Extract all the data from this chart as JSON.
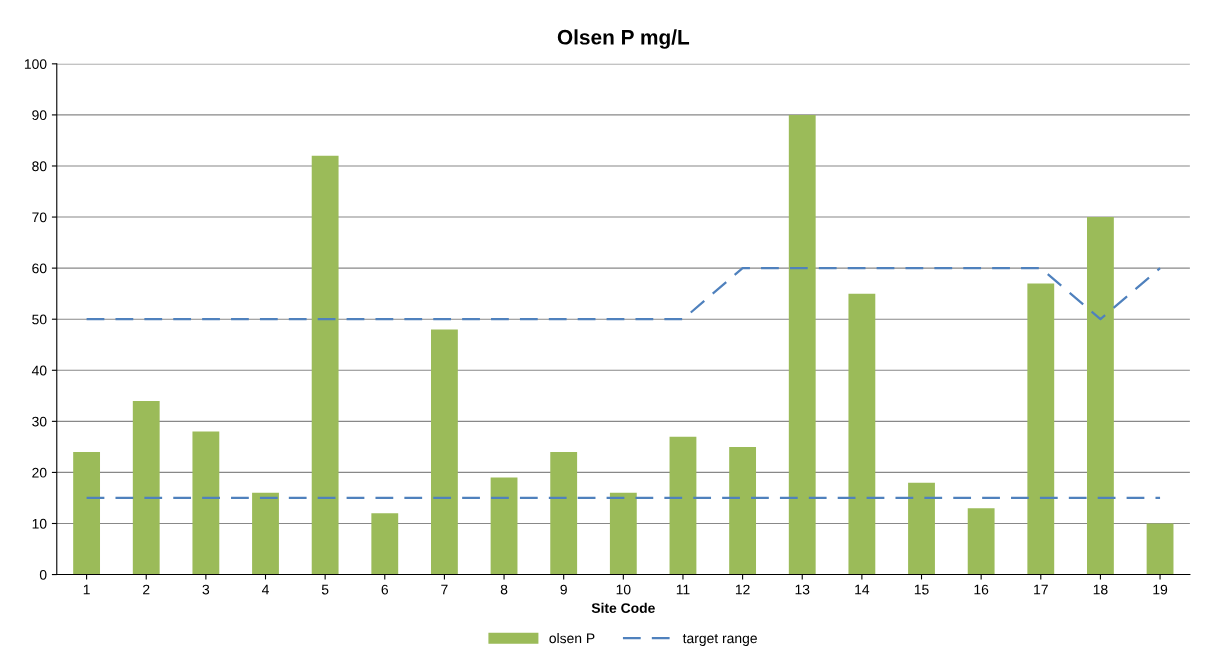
{
  "chart_data": {
    "type": "bar",
    "title": "Olsen P mg/L",
    "xlabel": "Site Code",
    "categories": [
      "1",
      "2",
      "3",
      "4",
      "5",
      "6",
      "7",
      "8",
      "9",
      "10",
      "11",
      "12",
      "13",
      "14",
      "15",
      "16",
      "17",
      "18",
      "19"
    ],
    "series": [
      {
        "name": "olsen P",
        "color": "#9bbb59",
        "values": [
          24,
          34,
          28,
          16,
          82,
          12,
          48,
          19,
          24,
          16,
          27,
          25,
          90,
          55,
          18,
          13,
          57,
          70,
          10
        ]
      },
      {
        "name": "target range",
        "type": "line",
        "color": "#4f81bd",
        "line_style": "dashed",
        "values": [
          50,
          50,
          50,
          50,
          50,
          50,
          50,
          50,
          50,
          50,
          50,
          60,
          60,
          60,
          60,
          60,
          60,
          50,
          60
        ]
      },
      {
        "type": "line",
        "color": "#4f81bd",
        "line_style": "dashed",
        "values": [
          15,
          15,
          15,
          15,
          15,
          15,
          15,
          15,
          15,
          15,
          15,
          15,
          15,
          15,
          15,
          15,
          15,
          15,
          15
        ]
      }
    ],
    "ylim": [
      0,
      100
    ],
    "yticks": [
      0,
      10,
      20,
      30,
      40,
      50,
      60,
      70,
      80,
      90,
      100
    ],
    "grid": "y",
    "legend": "bottom"
  }
}
